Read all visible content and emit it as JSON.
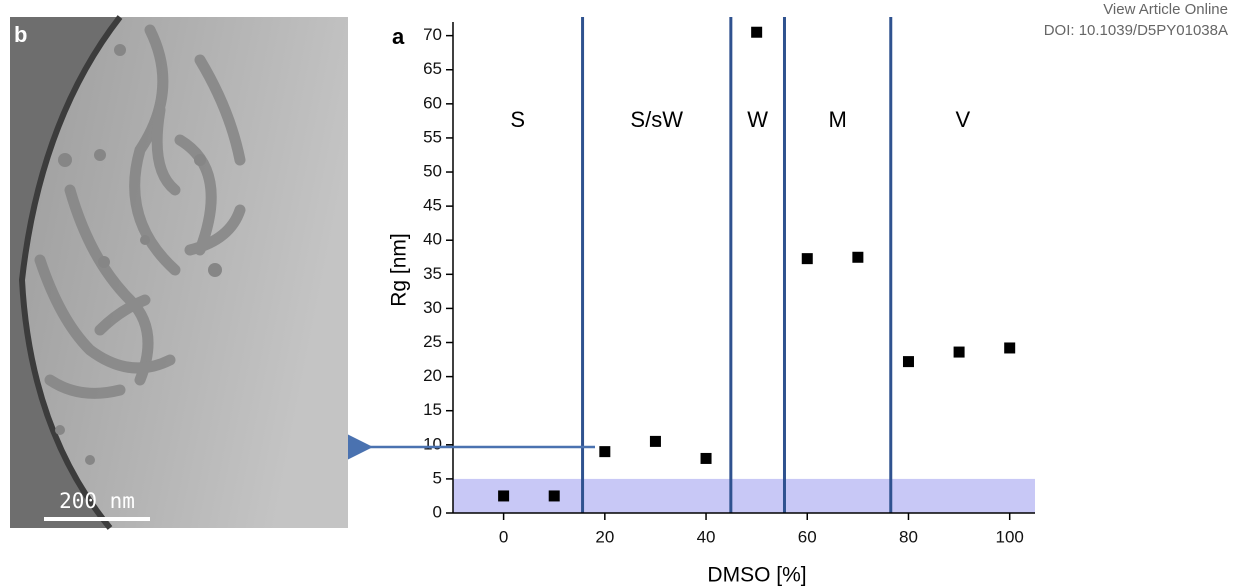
{
  "header": {
    "link": "View Article Online",
    "doi": "DOI: 10.1039/D5PY01038A"
  },
  "image_panel": {
    "label": "b",
    "scale_bar": "200 nm"
  },
  "chart_data": {
    "type": "scatter",
    "panel_label": "a",
    "x_label": "DMSO [%]",
    "y_label": "Rg [nm]",
    "x": [
      0,
      10,
      20,
      30,
      40,
      50,
      60,
      70,
      80,
      90,
      100
    ],
    "values": [
      2.5,
      2.5,
      9,
      10.5,
      8,
      70.5,
      37.3,
      37.5,
      22.2,
      23.6,
      24.2
    ],
    "color": "#000000",
    "xlim": [
      -10,
      105
    ],
    "ylim": [
      0,
      72
    ],
    "xticks": [
      0,
      20,
      40,
      60,
      80,
      100
    ],
    "yticks": [
      0,
      5,
      10,
      15,
      20,
      25,
      30,
      35,
      40,
      45,
      50,
      55,
      60,
      65,
      70
    ],
    "dividers": [
      15.6,
      44.9,
      55.5,
      76.5
    ],
    "divider_color": "#2f528f",
    "region_labels": [
      "S",
      "S/sW",
      "W",
      "M",
      "V"
    ],
    "band": [
      0,
      5
    ],
    "band_color": "#c8c8f6"
  }
}
